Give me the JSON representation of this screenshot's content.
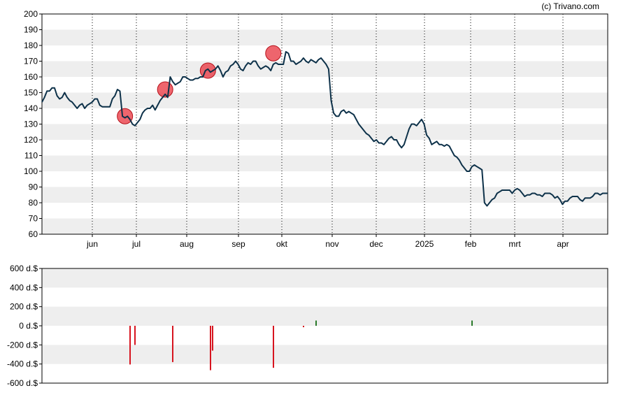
{
  "credit": "(c) Trivano.com",
  "colors": {
    "price_line": "#0d3149",
    "band_light": "#eeeeee",
    "marker_red": "#e8323c",
    "bar_negative": "#d7141f",
    "bar_positive": "#2a7a2a",
    "axis": "#000000",
    "month_grid": "#000000"
  },
  "chart_data": [
    {
      "type": "line",
      "title": "",
      "xlabel": "",
      "ylabel": "",
      "ylim": [
        60,
        200
      ],
      "yticks": [
        "200",
        "190",
        "180",
        "170",
        "160",
        "150",
        "140",
        "130",
        "120",
        "110",
        "100",
        "90",
        "80",
        "70",
        "60"
      ],
      "x_tick_labels": [
        "jun",
        "jul",
        "aug",
        "sep",
        "okt",
        "nov",
        "dec",
        "2025",
        "feb",
        "mrt",
        "apr"
      ],
      "grid": "alternating horizontal bands, dotted vertical month lines",
      "series": [
        {
          "values": [
            144,
            147,
            151,
            151,
            153,
            153,
            148,
            146,
            147,
            150,
            147,
            145,
            144,
            142,
            140,
            142,
            143,
            140,
            142,
            143,
            144,
            146,
            146,
            142,
            141,
            141,
            141,
            141,
            146,
            148,
            152,
            151,
            135,
            134,
            135,
            133,
            130,
            129,
            131,
            133,
            137,
            139,
            140,
            140,
            142,
            139,
            142,
            145,
            147,
            149,
            147,
            160,
            157,
            155,
            156,
            157,
            160,
            160,
            159,
            158,
            158,
            159,
            159,
            160,
            160,
            164,
            165,
            163,
            164,
            165,
            167,
            164,
            160,
            163,
            164,
            167,
            168,
            170,
            168,
            165,
            164,
            167,
            169,
            168,
            170,
            170,
            167,
            165,
            166,
            167,
            166,
            164,
            168,
            169,
            168,
            168,
            168,
            176,
            175,
            170,
            170,
            168,
            169,
            170,
            172,
            170,
            169,
            171,
            170,
            169,
            171,
            172,
            170,
            168,
            165,
            145,
            137,
            135,
            135,
            138,
            139,
            137,
            138,
            137,
            136,
            133,
            130,
            128,
            126,
            124,
            123,
            121,
            119,
            120,
            118,
            118,
            117,
            119,
            121,
            122,
            120,
            120,
            117,
            115,
            117,
            122,
            127,
            130,
            130,
            129,
            131,
            133,
            130,
            123,
            121,
            117,
            118,
            119,
            117,
            117,
            116,
            117,
            116,
            113,
            110,
            109,
            107,
            104,
            102,
            100,
            100,
            103,
            104,
            103,
            102,
            101,
            80,
            78,
            80,
            82,
            83,
            86,
            87,
            88,
            88,
            88,
            88,
            86,
            88,
            89,
            88,
            86,
            84,
            85,
            85,
            86,
            86,
            85,
            85,
            84,
            86,
            86,
            86,
            85,
            83,
            84,
            82,
            79,
            81,
            81,
            83,
            84,
            84,
            84,
            82,
            81,
            83,
            83,
            83,
            84,
            86,
            86,
            85,
            86,
            86,
            86
          ]
        }
      ],
      "markers": [
        {
          "index": 33,
          "value": 135
        },
        {
          "index": 49,
          "value": 152
        },
        {
          "index": 66,
          "value": 164
        },
        {
          "index": 92,
          "value": 175
        }
      ]
    },
    {
      "type": "bar",
      "title": "",
      "xlabel": "",
      "ylabel": "",
      "ylim": [
        -600,
        600
      ],
      "yticks": [
        "600 d.$",
        "400 d.$",
        "200 d.$",
        "0 d.$",
        "-200 d.$",
        "-400 d.$",
        "-600 d.$"
      ],
      "bars": [
        {
          "index": 35,
          "value": -405
        },
        {
          "index": 37,
          "value": -200
        },
        {
          "index": 52,
          "value": -380
        },
        {
          "index": 67,
          "value": -465
        },
        {
          "index": 68,
          "value": -260
        },
        {
          "index": 92,
          "value": -440
        },
        {
          "index": 104,
          "value": -15
        },
        {
          "index": 109,
          "value": 55
        },
        {
          "index": 171,
          "value": 55
        }
      ]
    }
  ]
}
